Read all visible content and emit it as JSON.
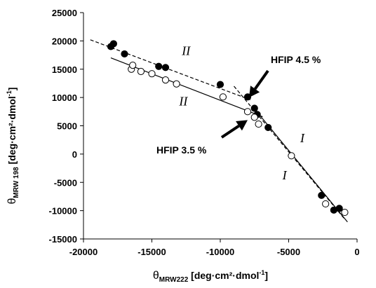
{
  "chart_data": {
    "type": "scatter",
    "xlim": [
      -20000,
      0
    ],
    "ylim": [
      -15000,
      25000
    ],
    "x_ticks": [
      -20000,
      -15000,
      -10000,
      -5000,
      0
    ],
    "y_ticks": [
      -15000,
      -10000,
      -5000,
      0,
      5000,
      10000,
      15000,
      20000,
      25000
    ],
    "x_tick_labels": [
      "-20000",
      "-15000",
      "-10000",
      "-5000",
      "0"
    ],
    "y_tick_labels": [
      "-15000",
      "-10000",
      "-5000",
      "0",
      "5000",
      "10000",
      "15000",
      "20000",
      "25000"
    ],
    "xlabel": {
      "symbol": "θ",
      "subscript": "MRW222",
      "unit": " [deg·cm²·dmol",
      "sup": "-1",
      "close": "]"
    },
    "ylabel": {
      "symbol": "θ",
      "subscript": "MRW 198",
      "unit": " [deg·cm²·dmol",
      "sup": "-1",
      "close": "]"
    },
    "grid": false,
    "series": [
      {
        "marker": "filled-circle",
        "line_style": "dashed",
        "points": [
          {
            "x": -18000,
            "y": 19000
          },
          {
            "x": -17800,
            "y": 19500
          },
          {
            "x": -17000,
            "y": 17700
          },
          {
            "x": -14500,
            "y": 15500
          },
          {
            "x": -14000,
            "y": 15300
          },
          {
            "x": -10000,
            "y": 12300
          },
          {
            "x": -8000,
            "y": 10100
          },
          {
            "x": -7500,
            "y": 8100
          },
          {
            "x": -7300,
            "y": 7000
          },
          {
            "x": -6500,
            "y": 4700
          },
          {
            "x": -2600,
            "y": -7300
          },
          {
            "x": -1700,
            "y": -9900
          },
          {
            "x": -1300,
            "y": -9600
          }
        ],
        "fit_lines": [
          {
            "from": [
              -19500,
              20200
            ],
            "to": [
              -7800,
              9600
            ]
          },
          {
            "from": [
              -9000,
              12000
            ],
            "to": [
              -900,
              -11500
            ]
          }
        ]
      },
      {
        "marker": "open-circle",
        "line_style": "solid",
        "points": [
          {
            "x": -16500,
            "y": 15000
          },
          {
            "x": -16400,
            "y": 15700
          },
          {
            "x": -15800,
            "y": 14600
          },
          {
            "x": -15000,
            "y": 14200
          },
          {
            "x": -14000,
            "y": 13100
          },
          {
            "x": -13200,
            "y": 12400
          },
          {
            "x": -9800,
            "y": 10100
          },
          {
            "x": -8000,
            "y": 7500
          },
          {
            "x": -7500,
            "y": 6500
          },
          {
            "x": -7200,
            "y": 5300
          },
          {
            "x": -4800,
            "y": -300
          },
          {
            "x": -2300,
            "y": -8800
          },
          {
            "x": -900,
            "y": -10300
          }
        ],
        "fit_lines": [
          {
            "from": [
              -18000,
              17000
            ],
            "to": [
              -6900,
              6600
            ]
          },
          {
            "from": [
              -7500,
              8000
            ],
            "to": [
              -700,
              -12000
            ]
          }
        ]
      }
    ],
    "annotations": [
      {
        "text": "HFIP 4.5 %",
        "arrow_to": [
          -7900,
          10000
        ]
      },
      {
        "text": "HFIP 3.5 %",
        "arrow_to": [
          -8000,
          6000
        ]
      }
    ],
    "region_labels": [
      {
        "text": "II",
        "x": -12500,
        "y": 17500
      },
      {
        "text": "II",
        "x": -12700,
        "y": 8600
      },
      {
        "text": "I",
        "x": -4000,
        "y": 2100
      },
      {
        "text": "I",
        "x": -5300,
        "y": -4500
      }
    ]
  }
}
